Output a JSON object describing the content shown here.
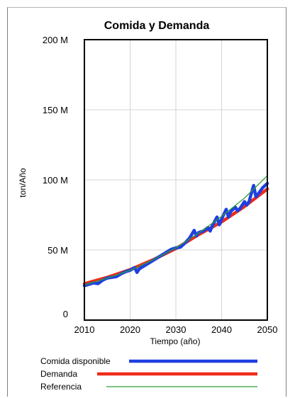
{
  "chart_data": {
    "type": "line",
    "title": "Comida y Demanda",
    "xlabel": "Tiempo (año)",
    "ylabel": "ton/Año",
    "xlim": [
      2010,
      2050
    ],
    "ylim": [
      0,
      200000000
    ],
    "x_ticks": [
      2010,
      2020,
      2030,
      2040,
      2050
    ],
    "x_tick_labels": [
      "2010",
      "2020",
      "2030",
      "2040",
      "2050"
    ],
    "y_ticks": [
      0,
      50000000,
      100000000,
      150000000,
      200000000
    ],
    "y_tick_labels": [
      "0",
      "50 M",
      "100 M",
      "150 M",
      "200 M"
    ],
    "grid": true,
    "legend_position": "bottom",
    "series": [
      {
        "name": "Comida disponible",
        "color": "#1f3fe0",
        "points": [
          [
            2010,
            24500000
          ],
          [
            2011,
            25500000
          ],
          [
            2012,
            26500000
          ],
          [
            2013,
            26000000
          ],
          [
            2014,
            28500000
          ],
          [
            2015,
            30000000
          ],
          [
            2016,
            30500000
          ],
          [
            2017,
            31000000
          ],
          [
            2018,
            33000000
          ],
          [
            2019,
            34500000
          ],
          [
            2020,
            35500000
          ],
          [
            2021,
            37500000
          ],
          [
            2021.5,
            34000000
          ],
          [
            2022,
            36500000
          ],
          [
            2023,
            38500000
          ],
          [
            2024,
            40500000
          ],
          [
            2025,
            42500000
          ],
          [
            2026,
            44500000
          ],
          [
            2027,
            46500000
          ],
          [
            2028,
            48500000
          ],
          [
            2029,
            50500000
          ],
          [
            2030,
            51500000
          ],
          [
            2031,
            52000000
          ],
          [
            2032,
            55000000
          ],
          [
            2033,
            58500000
          ],
          [
            2034,
            64000000
          ],
          [
            2034.5,
            60000000
          ],
          [
            2035,
            62500000
          ],
          [
            2036,
            63500000
          ],
          [
            2037,
            66000000
          ],
          [
            2037.5,
            63500000
          ],
          [
            2038,
            67500000
          ],
          [
            2039,
            73500000
          ],
          [
            2039.5,
            68000000
          ],
          [
            2040,
            72000000
          ],
          [
            2041,
            79000000
          ],
          [
            2041.5,
            73500000
          ],
          [
            2042,
            77500000
          ],
          [
            2043,
            80500000
          ],
          [
            2043.5,
            78000000
          ],
          [
            2044,
            79500000
          ],
          [
            2045,
            84500000
          ],
          [
            2045.5,
            82000000
          ],
          [
            2046,
            84500000
          ],
          [
            2047,
            96000000
          ],
          [
            2047.5,
            88000000
          ],
          [
            2048,
            90000000
          ],
          [
            2049,
            94500000
          ],
          [
            2050,
            97500000
          ]
        ]
      },
      {
        "name": "Demanda",
        "color": "#ee2a18",
        "points": [
          [
            2010,
            26000000
          ],
          [
            2015,
            30500000
          ],
          [
            2020,
            36000000
          ],
          [
            2025,
            43000000
          ],
          [
            2030,
            51000000
          ],
          [
            2035,
            61000000
          ],
          [
            2040,
            70000000
          ],
          [
            2045,
            81000000
          ],
          [
            2050,
            93500000
          ]
        ]
      },
      {
        "name": "Referencia",
        "color": "#2e9e3a",
        "points": [
          [
            2010,
            25000000
          ],
          [
            2015,
            30000000
          ],
          [
            2020,
            35500000
          ],
          [
            2025,
            43000000
          ],
          [
            2030,
            51500000
          ],
          [
            2035,
            62000000
          ],
          [
            2040,
            74000000
          ],
          [
            2045,
            87000000
          ],
          [
            2050,
            103000000
          ]
        ]
      }
    ]
  }
}
